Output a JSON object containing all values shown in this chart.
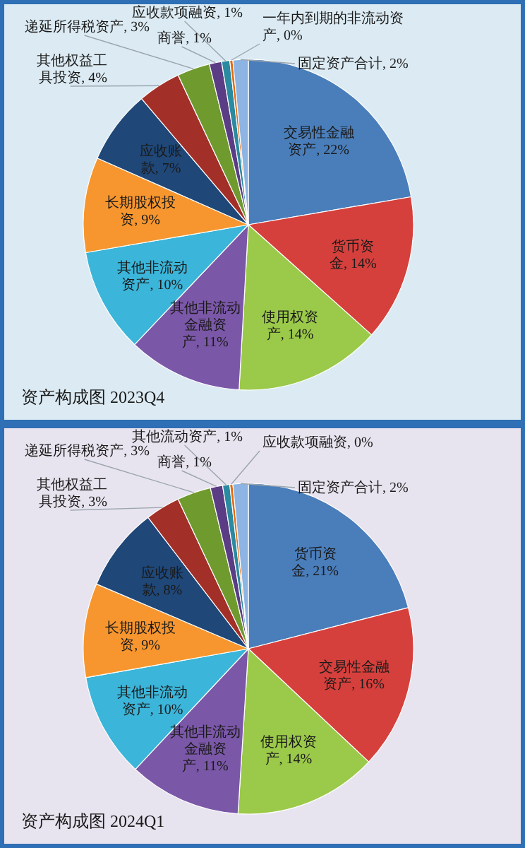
{
  "chart_data": [
    {
      "type": "pie",
      "title": "资产构成图 2023Q4",
      "categories": [
        "交易性金融资产",
        "货币资金",
        "使用权资产",
        "其他非流动金融资产",
        "其他非流动资产",
        "长期股权投资",
        "应收账款",
        "其他权益工具投资",
        "递延所得税资产",
        "商誉",
        "应收款项融资",
        "一年内到期的非流动资产",
        "固定资产合计"
      ],
      "values": [
        22.3,
        14.3,
        14.3,
        11.2,
        10.2,
        9.3,
        7.2,
        4.2,
        3.2,
        1.2,
        0.8,
        0.3,
        1.5
      ],
      "value_labels": [
        "22%",
        "14%",
        "14%",
        "11%",
        "10%",
        "9%",
        "7%",
        "4%",
        "3%",
        "1%",
        "1%",
        "0%",
        "2%"
      ],
      "colors": [
        "#4a7ebb",
        "#d6403c",
        "#9bc94a",
        "#7b57a8",
        "#3bb5d9",
        "#f7962e",
        "#1f4778",
        "#a33028",
        "#6f9a2e",
        "#5a3d84",
        "#2a8aa0",
        "#e86a10",
        "#8db4e2"
      ]
    },
    {
      "type": "pie",
      "title": "资产构成图 2024Q1",
      "categories": [
        "货币资金",
        "交易性金融资产",
        "使用权资产",
        "其他非流动金融资产",
        "其他非流动资产",
        "长期股权投资",
        "应收账款",
        "其他权益工具投资",
        "递延所得税资产",
        "商誉",
        "其他流动资产",
        "应收款项融资",
        "固定资产合计"
      ],
      "values": [
        21.0,
        16.0,
        14.0,
        11.0,
        10.2,
        9.2,
        8.2,
        3.4,
        3.3,
        1.2,
        0.7,
        0.3,
        1.5
      ],
      "value_labels": [
        "21%",
        "16%",
        "14%",
        "11%",
        "10%",
        "9%",
        "8%",
        "3%",
        "3%",
        "1%",
        "1%",
        "0%",
        "2%"
      ],
      "colors": [
        "#4a7ebb",
        "#d6403c",
        "#9bc94a",
        "#7b57a8",
        "#3bb5d9",
        "#f7962e",
        "#1f4778",
        "#a33028",
        "#6f9a2e",
        "#5a3d84",
        "#2a8aa0",
        "#e86a10",
        "#8db4e2"
      ]
    }
  ]
}
